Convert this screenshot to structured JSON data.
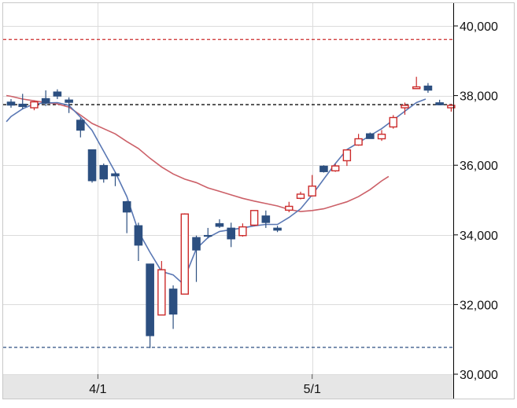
{
  "chart_data": {
    "type": "candlestick",
    "y_ticks": [
      {
        "value": 30000,
        "label": "30,000"
      },
      {
        "value": 32000,
        "label": "32,000"
      },
      {
        "value": 34000,
        "label": "34,000"
      },
      {
        "value": 36000,
        "label": "36,000"
      },
      {
        "value": 38000,
        "label": "38,000"
      },
      {
        "value": 40000,
        "label": "40,000"
      }
    ],
    "ylim": [
      29700,
      40400
    ],
    "x_ticks": [
      {
        "index": 7.5,
        "label": "4/1"
      },
      {
        "index": 26,
        "label": "5/1"
      }
    ],
    "xlim": [
      -0.4,
      35.8
    ],
    "grid": true,
    "colors": {
      "up": "#cc2b2b",
      "down": "#2c4f80",
      "ma_short": "#5a78b4",
      "ma_long": "#cc6068",
      "high_line": "#cc2b2b",
      "low_line": "#2c4f80",
      "last_line": "#222222",
      "axis_band": "#e6e6e6",
      "grid": "#dcdcdc"
    },
    "candles": [
      {
        "o": 37820,
        "h": 37900,
        "l": 37650,
        "c": 37720
      },
      {
        "o": 37760,
        "h": 38050,
        "l": 37620,
        "c": 37680
      },
      {
        "o": 37650,
        "h": 37850,
        "l": 37580,
        "c": 37820
      },
      {
        "o": 37920,
        "h": 38150,
        "l": 37700,
        "c": 37780
      },
      {
        "o": 38110,
        "h": 38180,
        "l": 37900,
        "c": 37980
      },
      {
        "o": 37880,
        "h": 37950,
        "l": 37500,
        "c": 37800
      },
      {
        "o": 37300,
        "h": 37350,
        "l": 36800,
        "c": 37000
      },
      {
        "o": 36450,
        "h": 36450,
        "l": 35500,
        "c": 35550
      },
      {
        "o": 36000,
        "h": 36050,
        "l": 35500,
        "c": 35600
      },
      {
        "o": 35760,
        "h": 35800,
        "l": 35400,
        "c": 35690
      },
      {
        "o": 34960,
        "h": 34980,
        "l": 34050,
        "c": 34650
      },
      {
        "o": 34270,
        "h": 34350,
        "l": 33250,
        "c": 33700
      },
      {
        "o": 33170,
        "h": 33170,
        "l": 30750,
        "c": 31100
      },
      {
        "o": 31700,
        "h": 33250,
        "l": 31700,
        "c": 33000
      },
      {
        "o": 32450,
        "h": 32550,
        "l": 31300,
        "c": 31720
      },
      {
        "o": 32300,
        "h": 34620,
        "l": 32300,
        "c": 34600
      },
      {
        "o": 33930,
        "h": 33980,
        "l": 32650,
        "c": 33560
      },
      {
        "o": 33990,
        "h": 34200,
        "l": 33900,
        "c": 33970
      },
      {
        "o": 34330,
        "h": 34450,
        "l": 34200,
        "c": 34240
      },
      {
        "o": 34200,
        "h": 34350,
        "l": 33650,
        "c": 33880
      },
      {
        "o": 33980,
        "h": 34330,
        "l": 33950,
        "c": 34230
      },
      {
        "o": 34280,
        "h": 34700,
        "l": 34250,
        "c": 34700
      },
      {
        "o": 34550,
        "h": 34700,
        "l": 34200,
        "c": 34350
      },
      {
        "o": 34200,
        "h": 34260,
        "l": 34080,
        "c": 34130
      },
      {
        "o": 34710,
        "h": 34950,
        "l": 34650,
        "c": 34820
      },
      {
        "o": 35050,
        "h": 35240,
        "l": 35020,
        "c": 35170
      },
      {
        "o": 35120,
        "h": 35720,
        "l": 35100,
        "c": 35400
      },
      {
        "o": 35980,
        "h": 36000,
        "l": 35790,
        "c": 35810
      },
      {
        "o": 35840,
        "h": 36040,
        "l": 35810,
        "c": 35980
      },
      {
        "o": 36130,
        "h": 36440,
        "l": 35980,
        "c": 36440
      },
      {
        "o": 36580,
        "h": 36900,
        "l": 36560,
        "c": 36760
      },
      {
        "o": 36910,
        "h": 36940,
        "l": 36780,
        "c": 36760
      },
      {
        "o": 36760,
        "h": 37010,
        "l": 36700,
        "c": 36890
      },
      {
        "o": 37100,
        "h": 37440,
        "l": 37050,
        "c": 37370
      },
      {
        "o": 37650,
        "h": 37800,
        "l": 37450,
        "c": 37720
      },
      {
        "o": 38200,
        "h": 38540,
        "l": 38200,
        "c": 38250
      },
      {
        "o": 38280,
        "h": 38360,
        "l": 38080,
        "c": 38150
      },
      {
        "o": 37800,
        "h": 37880,
        "l": 37730,
        "c": 37730
      },
      {
        "o": 37650,
        "h": 37760,
        "l": 37540,
        "c": 37720
      }
    ],
    "ma_short": [
      [
        -0.4,
        37250
      ],
      [
        0,
        37400
      ],
      [
        1,
        37620
      ],
      [
        2,
        37760
      ],
      [
        3,
        37790
      ],
      [
        4,
        37800
      ],
      [
        5,
        37720
      ],
      [
        6,
        37380
      ],
      [
        7,
        37000
      ],
      [
        8,
        36400
      ],
      [
        9,
        35800
      ],
      [
        10,
        35100
      ],
      [
        11,
        34100
      ],
      [
        12,
        33500
      ],
      [
        13,
        32950
      ],
      [
        14,
        32850
      ],
      [
        14.8,
        32610
      ],
      [
        16,
        33600
      ],
      [
        17,
        33920
      ],
      [
        18,
        34100
      ],
      [
        19,
        34150
      ],
      [
        20,
        34200
      ],
      [
        21,
        34260
      ],
      [
        22,
        34300
      ],
      [
        23,
        34300
      ],
      [
        24,
        34500
      ],
      [
        25,
        34750
      ],
      [
        26,
        35150
      ],
      [
        27,
        35600
      ],
      [
        28,
        36050
      ],
      [
        29,
        36450
      ],
      [
        30,
        36650
      ],
      [
        31,
        36850
      ],
      [
        32,
        37050
      ],
      [
        33,
        37300
      ],
      [
        34,
        37550
      ],
      [
        35,
        37800
      ],
      [
        35.8,
        37900
      ]
    ],
    "ma_long": [
      [
        -0.4,
        38000
      ],
      [
        0,
        37980
      ],
      [
        1,
        37900
      ],
      [
        2,
        37850
      ],
      [
        3,
        37800
      ],
      [
        4,
        37760
      ],
      [
        5,
        37670
      ],
      [
        6,
        37440
      ],
      [
        7,
        37200
      ],
      [
        8,
        37050
      ],
      [
        9,
        36900
      ],
      [
        10,
        36680
      ],
      [
        11,
        36480
      ],
      [
        12,
        36200
      ],
      [
        13,
        35950
      ],
      [
        14,
        35750
      ],
      [
        15,
        35600
      ],
      [
        16,
        35500
      ],
      [
        17,
        35350
      ],
      [
        18,
        35250
      ],
      [
        19,
        35150
      ],
      [
        20,
        35050
      ],
      [
        21,
        34970
      ],
      [
        22,
        34900
      ],
      [
        23,
        34830
      ],
      [
        24,
        34730
      ],
      [
        25,
        34670
      ],
      [
        26,
        34700
      ],
      [
        27,
        34750
      ],
      [
        28,
        34850
      ],
      [
        29,
        34950
      ],
      [
        30,
        35100
      ],
      [
        31,
        35300
      ],
      [
        32,
        35550
      ],
      [
        32.6,
        35680
      ]
    ],
    "ref_lines": {
      "high": 39610,
      "low": 30770,
      "last": 37740
    }
  }
}
